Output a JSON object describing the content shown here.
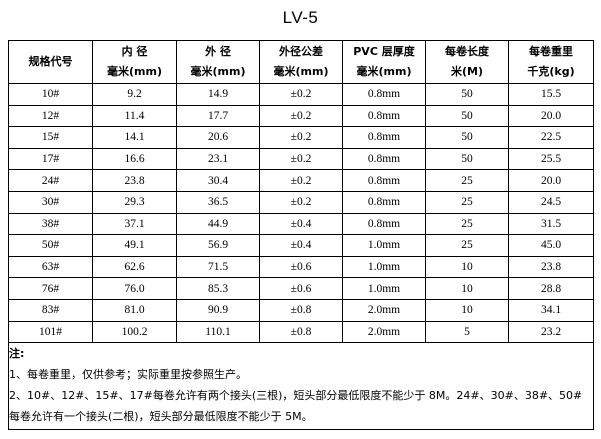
{
  "title": "LV-5",
  "table": {
    "headers": [
      {
        "line1": "规格代号",
        "line2": ""
      },
      {
        "line1": "内  径",
        "line2": "毫米(mm)"
      },
      {
        "line1": "外  径",
        "line2": "毫米(mm)"
      },
      {
        "line1": "外径公差",
        "line2": "毫米(mm)"
      },
      {
        "line1": "PVC 层厚度",
        "line2": "毫米(mm)"
      },
      {
        "line1": "每卷长度",
        "line2": "米(M)"
      },
      {
        "line1": "每卷重里",
        "line2": "千克(kg)"
      }
    ],
    "rows": [
      [
        "10#",
        "9.2",
        "14.9",
        "±0.2",
        "0.8mm",
        "50",
        "15.5"
      ],
      [
        "12#",
        "11.4",
        "17.7",
        "±0.2",
        "0.8mm",
        "50",
        "20.0"
      ],
      [
        "15#",
        "14.1",
        "20.6",
        "±0.2",
        "0.8mm",
        "50",
        "22.5"
      ],
      [
        "17#",
        "16.6",
        "23.1",
        "±0.2",
        "0.8mm",
        "50",
        "25.5"
      ],
      [
        "24#",
        "23.8",
        "30.4",
        "±0.2",
        "0.8mm",
        "25",
        "20.0"
      ],
      [
        "30#",
        "29.3",
        "36.5",
        "±0.2",
        "0.8mm",
        "25",
        "24.5"
      ],
      [
        "38#",
        "37.1",
        "44.9",
        "±0.4",
        "0.8mm",
        "25",
        "31.5"
      ],
      [
        "50#",
        "49.1",
        "56.9",
        "±0.4",
        "1.0mm",
        "25",
        "45.0"
      ],
      [
        "63#",
        "62.6",
        "71.5",
        "±0.6",
        "1.0mm",
        "10",
        "23.8"
      ],
      [
        "76#",
        "76.0",
        "85.3",
        "±0.6",
        "1.0mm",
        "10",
        "28.8"
      ],
      [
        "83#",
        "81.0",
        "90.9",
        "±0.8",
        "2.0mm",
        "10",
        "34.1"
      ],
      [
        "101#",
        "100.2",
        "110.1",
        "±0.8",
        "2.0mm",
        "5",
        "23.2"
      ]
    ]
  },
  "notes": {
    "heading": "注:",
    "lines": [
      "1、每卷重里，仅供参考；实际重里按参照生产。",
      "2、10#、12#、15#、17#每卷允许有两个接头(三根)，短头部分最低限度不能少于 8M。24#、30#、38#、50#",
      "每卷允许有一个接头(二根)，短头部分最低限度不能少于 5M。"
    ]
  }
}
